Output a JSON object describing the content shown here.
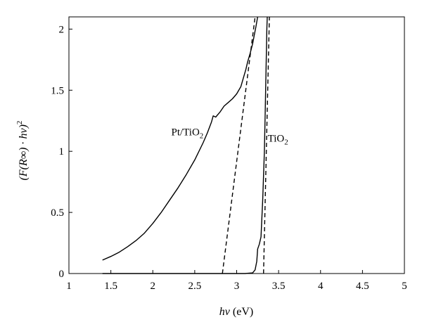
{
  "chart_data": {
    "type": "line",
    "xlabel": {
      "italic": "hν",
      "rest": " (eV)"
    },
    "ylabel": {
      "text": "(F(R∞) · hν)",
      "sup": "2"
    },
    "xlim": [
      1,
      5
    ],
    "ylim": [
      0,
      2.1
    ],
    "x_ticks": [
      1,
      1.5,
      2,
      2.5,
      3,
      3.5,
      4,
      4.5,
      5
    ],
    "x_tick_labels": [
      "1",
      "1.5",
      "2",
      "2.5",
      "3",
      "3.5",
      "4",
      "4.5",
      "5"
    ],
    "y_ticks": [
      0,
      0.5,
      1,
      1.5,
      2
    ],
    "y_tick_labels": [
      "0",
      "0.5",
      "1",
      "1.5",
      "2"
    ],
    "grid": false,
    "legend": "none",
    "series": [
      {
        "id": "pt-tio2",
        "style": "solid",
        "label": {
          "base": "Pt/TiO",
          "sub": "2"
        },
        "points": [
          [
            1.4,
            0.11
          ],
          [
            1.5,
            0.14
          ],
          [
            1.6,
            0.175
          ],
          [
            1.7,
            0.22
          ],
          [
            1.8,
            0.27
          ],
          [
            1.9,
            0.33
          ],
          [
            2.0,
            0.41
          ],
          [
            2.1,
            0.5
          ],
          [
            2.2,
            0.6
          ],
          [
            2.3,
            0.7
          ],
          [
            2.4,
            0.81
          ],
          [
            2.5,
            0.93
          ],
          [
            2.6,
            1.07
          ],
          [
            2.65,
            1.15
          ],
          [
            2.7,
            1.24
          ],
          [
            2.72,
            1.29
          ],
          [
            2.75,
            1.28
          ],
          [
            2.8,
            1.32
          ],
          [
            2.85,
            1.37
          ],
          [
            2.9,
            1.4
          ],
          [
            2.95,
            1.43
          ],
          [
            3.0,
            1.47
          ],
          [
            3.05,
            1.53
          ],
          [
            3.08,
            1.6
          ],
          [
            3.11,
            1.67
          ],
          [
            3.13,
            1.73
          ],
          [
            3.16,
            1.8
          ],
          [
            3.19,
            1.88
          ],
          [
            3.21,
            1.95
          ],
          [
            3.23,
            2.02
          ],
          [
            3.25,
            2.1
          ]
        ]
      },
      {
        "id": "tio2",
        "style": "solid",
        "label": {
          "base": "TiO",
          "sub": "2"
        },
        "points": [
          [
            1.4,
            0.0
          ],
          [
            3.1,
            0.0
          ],
          [
            3.19,
            0.005
          ],
          [
            3.22,
            0.03
          ],
          [
            3.24,
            0.1
          ],
          [
            3.25,
            0.2
          ],
          [
            3.27,
            0.24
          ],
          [
            3.29,
            0.3
          ],
          [
            3.3,
            0.45
          ],
          [
            3.31,
            0.6
          ],
          [
            3.32,
            0.8
          ],
          [
            3.33,
            1.0
          ],
          [
            3.34,
            1.3
          ],
          [
            3.35,
            1.65
          ],
          [
            3.36,
            2.0
          ],
          [
            3.365,
            2.1
          ]
        ]
      },
      {
        "id": "pt-tio2-tangent",
        "style": "dashed",
        "points": [
          [
            2.83,
            0.0
          ],
          [
            3.22,
            2.1
          ]
        ]
      },
      {
        "id": "tio2-tangent",
        "style": "dashed",
        "points": [
          [
            3.32,
            0.0
          ],
          [
            3.39,
            2.1
          ]
        ]
      }
    ],
    "annotations": [
      {
        "series": "pt-tio2",
        "x": 2.22,
        "y": 1.13
      },
      {
        "series": "tio2",
        "x": 3.37,
        "y": 1.08
      }
    ]
  }
}
